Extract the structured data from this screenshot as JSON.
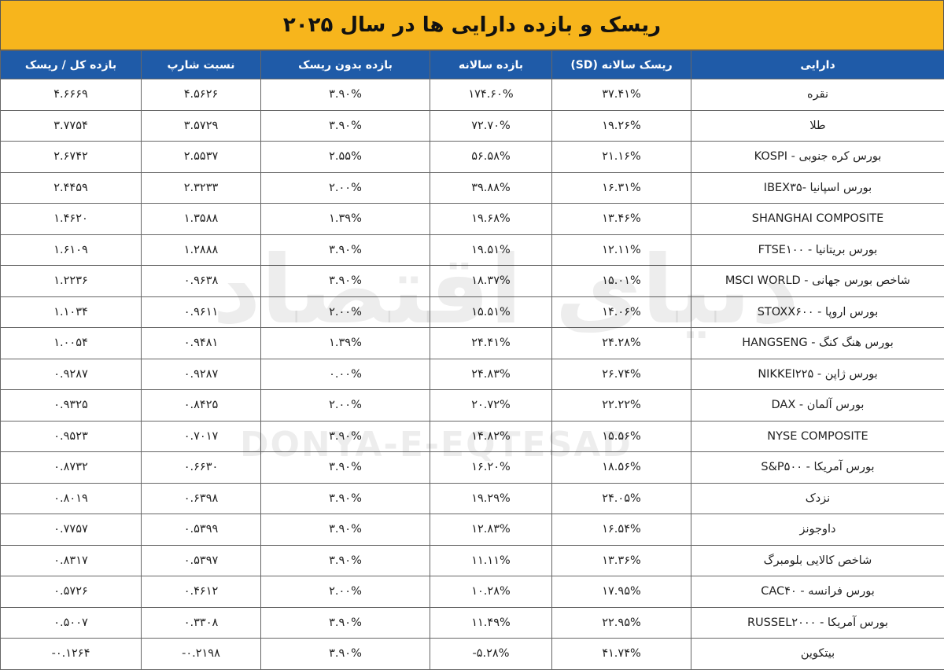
{
  "header": {
    "title": "ریسک و بازده دارایی ها در سال ۲۰۲۵"
  },
  "table": {
    "columns": [
      "دارایی",
      "ریسک سالانه (SD)",
      "بازده سالانه",
      "بازده بدون ریسک",
      "نسبت شارپ",
      "بازده کل / ریسک"
    ],
    "rows": [
      [
        "نقره",
        "۳۷.۴۱%",
        "۱۷۴.۶۰%",
        "۳.۹۰%",
        "۴.۵۶۲۶",
        "۴.۶۶۶۹"
      ],
      [
        "طلا",
        "۱۹.۲۶%",
        "۷۲.۷۰%",
        "۳.۹۰%",
        "۳.۵۷۲۹",
        "۳.۷۷۵۴"
      ],
      [
        "بورس کره جنوبی - KOSPI",
        "۲۱.۱۶%",
        "۵۶.۵۸%",
        "۲.۵۵%",
        "۲.۵۵۳۷",
        "۲.۶۷۴۲"
      ],
      [
        "بورس اسپانیا -IBEX۳۵",
        "۱۶.۳۱%",
        "۳۹.۸۸%",
        "۲.۰۰%",
        "۲.۳۲۳۳",
        "۲.۴۴۵۹"
      ],
      [
        "SHANGHAI COMPOSITE",
        "۱۳.۴۶%",
        "۱۹.۶۸%",
        "۱.۳۹%",
        "۱.۳۵۸۸",
        "۱.۴۶۲۰"
      ],
      [
        "بورس بریتانیا - FTSE۱۰۰",
        "۱۲.۱۱%",
        "۱۹.۵۱%",
        "۳.۹۰%",
        "۱.۲۸۸۸",
        "۱.۶۱۰۹"
      ],
      [
        "شاخص بورس جهانی - MSCI WORLD",
        "۱۵.۰۱%",
        "۱۸.۳۷%",
        "۳.۹۰%",
        "۰.۹۶۳۸",
        "۱.۲۲۳۶"
      ],
      [
        "بورس اروپا - STOXX۶۰۰",
        "۱۴.۰۶%",
        "۱۵.۵۱%",
        "۲.۰۰%",
        "۰.۹۶۱۱",
        "۱.۱۰۳۴"
      ],
      [
        "بورس هنگ کنگ - HANGSENG",
        "۲۴.۲۸%",
        "۲۴.۴۱%",
        "۱.۳۹%",
        "۰.۹۴۸۱",
        "۱.۰۰۵۴"
      ],
      [
        "بورس ژاپن - NIKKEI۲۲۵",
        "۲۶.۷۴%",
        "۲۴.۸۳%",
        "۰.۰۰%",
        "۰.۹۲۸۷",
        "۰.۹۲۸۷"
      ],
      [
        "بورس آلمان - DAX",
        "۲۲.۲۲%",
        "۲۰.۷۲%",
        "۲.۰۰%",
        "۰.۸۴۲۵",
        "۰.۹۳۲۵"
      ],
      [
        "NYSE COMPOSITE",
        "۱۵.۵۶%",
        "۱۴.۸۲%",
        "۳.۹۰%",
        "۰.۷۰۱۷",
        "۰.۹۵۲۳"
      ],
      [
        "بورس آمریکا - S&P۵۰۰",
        "۱۸.۵۶%",
        "۱۶.۲۰%",
        "۳.۹۰%",
        "۰.۶۶۳۰",
        "۰.۸۷۳۲"
      ],
      [
        "نزدک",
        "۲۴.۰۵%",
        "۱۹.۲۹%",
        "۳.۹۰%",
        "۰.۶۳۹۸",
        "۰.۸۰۱۹"
      ],
      [
        "داوجونز",
        "۱۶.۵۴%",
        "۱۲.۸۳%",
        "۳.۹۰%",
        "۰.۵۳۹۹",
        "۰.۷۷۵۷"
      ],
      [
        "شاخص کالایی بلومبرگ",
        "۱۳.۳۶%",
        "۱۱.۱۱%",
        "۳.۹۰%",
        "۰.۵۳۹۷",
        "۰.۸۳۱۷"
      ],
      [
        "بورس فرانسه - CAC۴۰",
        "۱۷.۹۵%",
        "۱۰.۲۸%",
        "۲.۰۰%",
        "۰.۴۶۱۲",
        "۰.۵۷۲۶"
      ],
      [
        "بورس آمریکا - RUSSEL۲۰۰۰",
        "۲۲.۹۵%",
        "۱۱.۴۹%",
        "۳.۹۰%",
        "۰.۳۳۰۸",
        "۰.۵۰۰۷"
      ],
      [
        "بیتکوین",
        "۴۱.۷۴%",
        "-۵.۲۸%",
        "۳.۹۰%",
        "-۰.۲۱۹۸",
        "-۰.۱۲۶۴"
      ]
    ]
  },
  "watermark": {
    "persian": "دنیای اقتصاد",
    "latin": "DONYA-E-EQTESAD"
  }
}
